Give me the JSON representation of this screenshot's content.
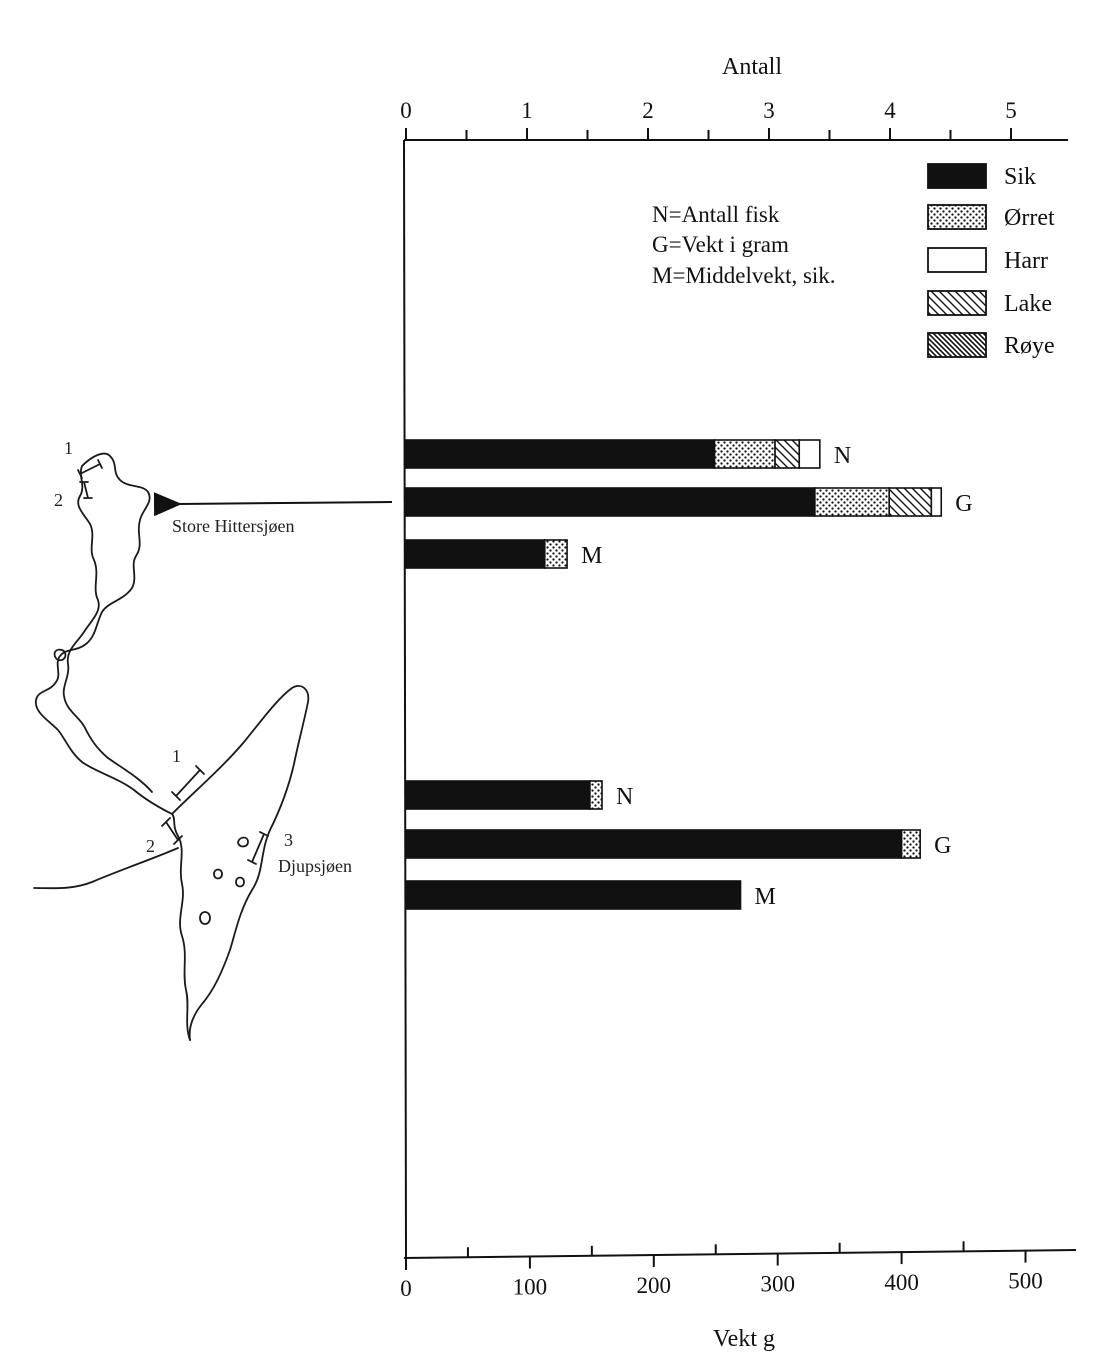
{
  "chart_data": {
    "type": "bar",
    "orientation": "horizontal",
    "stacked": true,
    "top_axis": {
      "label": "Antall",
      "min": 0,
      "max": 5.5,
      "tick_labels": [
        "0",
        "1",
        "2",
        "3",
        "4",
        "5"
      ],
      "tick_values": [
        0,
        1,
        2,
        3,
        4,
        5
      ],
      "minor_ticks": [
        0.5,
        1.5,
        2.5,
        3.5,
        4.5
      ]
    },
    "bottom_axis": {
      "label": "Vekt g",
      "min": 0,
      "max": 540,
      "tick_labels": [
        "0",
        "100",
        "200",
        "300",
        "400",
        "500"
      ],
      "tick_values": [
        0,
        100,
        200,
        300,
        400,
        500
      ],
      "minor_ticks": [
        50,
        150,
        250,
        350,
        450
      ]
    },
    "legend": {
      "placement": "top-right",
      "entries": [
        {
          "name": "Sik",
          "pattern": "solid-black"
        },
        {
          "name": "Ørret",
          "pattern": "dots"
        },
        {
          "name": "Harr",
          "pattern": "white"
        },
        {
          "name": "Lake",
          "pattern": "diagonal-light"
        },
        {
          "name": "Røye",
          "pattern": "diagonal-dense"
        }
      ]
    },
    "notes": [
      "N=Antall fisk",
      "G=Vekt i gram",
      "M=Middelvekt, sik."
    ],
    "groups": [
      {
        "location": "Store Hittersjøen",
        "bars": [
          {
            "label": "N",
            "axis": "top",
            "segments": [
              {
                "species": "Sik",
                "value": 2.55
              },
              {
                "species": "Ørret",
                "value": 0.5
              },
              {
                "species": "Lake",
                "value": 0.2
              },
              {
                "species": "Harr",
                "value": 0.17
              }
            ]
          },
          {
            "label": "G",
            "axis": "bottom",
            "segments": [
              {
                "species": "Sik",
                "value": 330
              },
              {
                "species": "Ørret",
                "value": 60
              },
              {
                "species": "Lake",
                "value": 34
              },
              {
                "species": "Harr",
                "value": 8
              }
            ]
          },
          {
            "label": "M",
            "axis": "bottom",
            "segments": [
              {
                "species": "Sik",
                "value": 112
              },
              {
                "species": "Ørret",
                "value": 18
              }
            ]
          }
        ]
      },
      {
        "location": "Djupsjøen",
        "bars": [
          {
            "label": "N",
            "axis": "top",
            "segments": [
              {
                "species": "Sik",
                "value": 1.52
              },
              {
                "species": "Ørret",
                "value": 0.1
              }
            ]
          },
          {
            "label": "G",
            "axis": "bottom",
            "segments": [
              {
                "species": "Sik",
                "value": 400
              },
              {
                "species": "Ørret",
                "value": 15
              }
            ]
          },
          {
            "label": "M",
            "axis": "bottom",
            "segments": [
              {
                "species": "Sik",
                "value": 270
              }
            ]
          }
        ]
      }
    ]
  },
  "map": {
    "lakes": [
      {
        "name": "Store Hittersjøen",
        "stations": [
          "1",
          "2"
        ]
      },
      {
        "name": "Djupsjøen",
        "stations": [
          "1",
          "2",
          "3"
        ]
      }
    ]
  },
  "colors": {
    "ink": "#111111",
    "paper": "#ffffff"
  }
}
